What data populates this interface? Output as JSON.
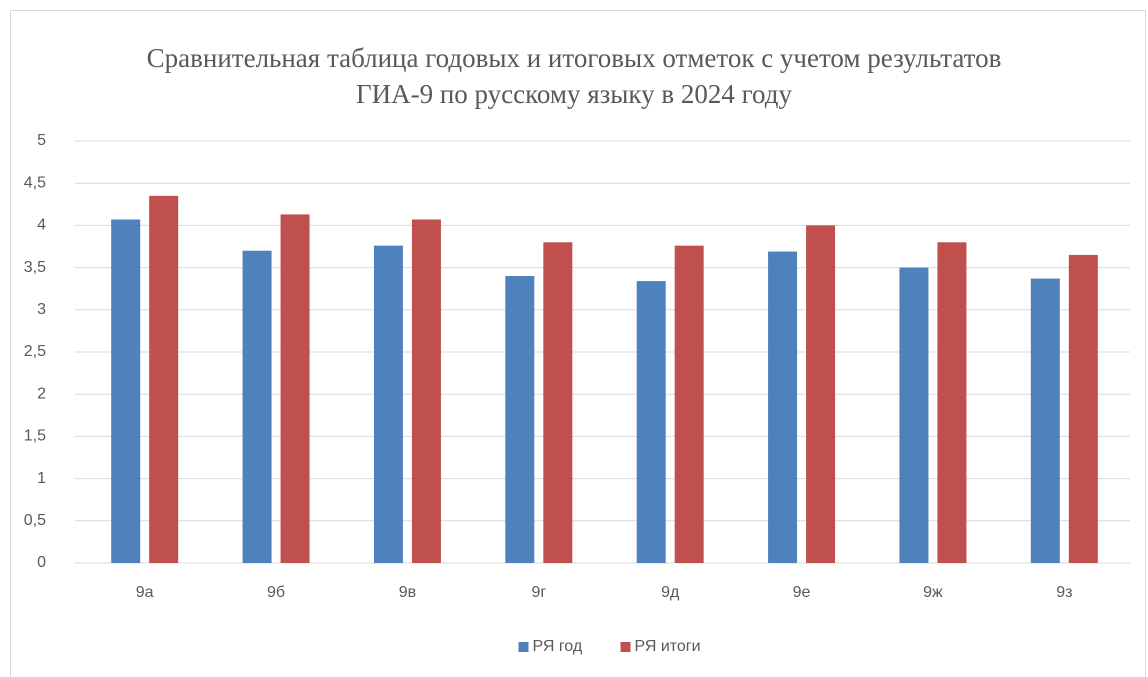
{
  "chart_data": {
    "type": "bar",
    "title": "Сравнительная таблица годовых и итоговых отметок с учетом результатов ГИА-9 по русскому языку в 2024 году",
    "categories": [
      "9а",
      "9б",
      "9в",
      "9г",
      "9д",
      "9е",
      "9ж",
      "9з"
    ],
    "series": [
      {
        "name": "РЯ год",
        "color": "#4f81bd",
        "values": [
          4.07,
          3.7,
          3.76,
          3.4,
          3.34,
          3.69,
          3.5,
          3.37
        ]
      },
      {
        "name": "РЯ итоги",
        "color": "#c0504d",
        "values": [
          4.35,
          4.13,
          4.07,
          3.8,
          3.76,
          4.0,
          3.8,
          3.65
        ]
      }
    ],
    "ylim": [
      0,
      5
    ],
    "yticks": [
      0,
      {
        "value": 0.5,
        "label": "0,5"
      },
      1,
      {
        "value": 1.5,
        "label": "1,5"
      },
      2,
      {
        "value": 2.5,
        "label": "2,5"
      },
      3,
      {
        "value": 3.5,
        "label": "3,5"
      },
      4,
      {
        "value": 4.5,
        "label": "4,5"
      },
      5
    ],
    "grid": true,
    "legend": "bottom"
  }
}
